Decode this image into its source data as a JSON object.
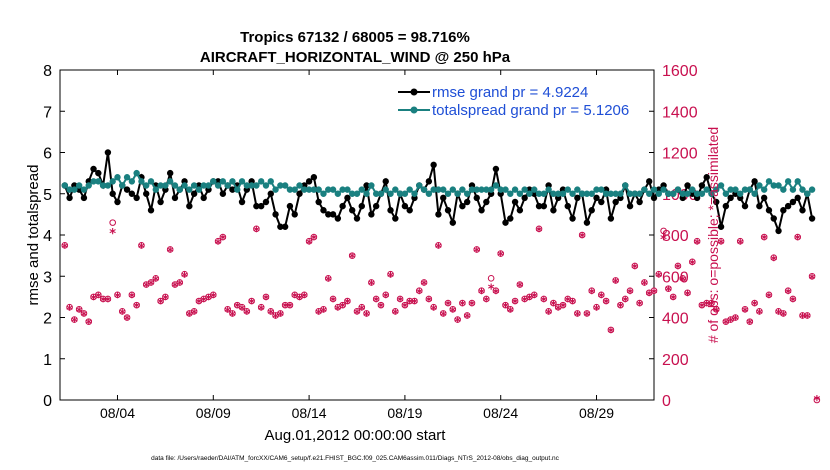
{
  "chart_data": {
    "type": "line",
    "title_line1": "Tropics 67132 / 68005 = 98.716%",
    "title_line2": "AIRCRAFT_HORIZONTAL_WIND @ 250 hPa",
    "ylabel_left": "rmse and totalspread",
    "ylabel_right": "# of obs: o=possible; *=assimilated",
    "xlabel": "Aug.01,2012 00:00:00 start",
    "footnote": "data file: /Users/raeder/DAI/ATM_forcXX/CAM6_setup/f.e21.FHIST_BGC.f09_025.CAM6assim.011/Diags_NTrS_2012-08/obs_diag_output.nc",
    "x_tick_labels": [
      "08/04",
      "08/09",
      "08/14",
      "08/19",
      "08/24",
      "08/29"
    ],
    "x_tick_days": [
      4,
      9,
      14,
      19,
      24,
      29
    ],
    "xlim": [
      1,
      32
    ],
    "ylim_left": [
      0,
      8
    ],
    "yticks_left": [
      "0",
      "1",
      "2",
      "3",
      "4",
      "5",
      "6",
      "7",
      "8"
    ],
    "ylim_right": [
      0,
      1600
    ],
    "yticks_right": [
      "0",
      "200",
      "400",
      "600",
      "800",
      "1000",
      "1200",
      "1400",
      "1600"
    ],
    "grid": false,
    "legend_position": "top-right",
    "series": [
      {
        "name": "rmse grand pr = 4.9224",
        "axis": "left",
        "color": "#000000",
        "x_start": 1.25,
        "x_step": 0.25,
        "values": [
          5.2,
          4.9,
          5.2,
          5.1,
          4.9,
          5.3,
          5.6,
          5.5,
          5.2,
          6.0,
          5.0,
          4.8,
          5.2,
          5.1,
          5.0,
          4.9,
          5.4,
          5.0,
          4.6,
          5.2,
          4.8,
          5.1,
          5.5,
          4.9,
          5.1,
          5.3,
          4.7,
          5.0,
          5.2,
          4.9,
          5.1,
          5.3,
          5.3,
          5.0,
          5.2,
          5.1,
          5.2,
          4.8,
          5.1,
          5.3,
          4.7,
          4.7,
          4.8,
          5.0,
          4.5,
          4.2,
          4.2,
          4.7,
          4.5,
          5.0,
          5.2,
          5.3,
          5.4,
          4.8,
          4.6,
          4.5,
          4.5,
          4.4,
          4.7,
          4.9,
          4.6,
          4.4,
          4.7,
          5.2,
          4.5,
          4.7,
          5.0,
          5.3,
          4.6,
          4.4,
          5.0,
          4.7,
          4.6,
          4.9,
          5.2,
          5.1,
          5.3,
          5.7,
          4.5,
          4.9,
          4.6,
          4.3,
          5.0,
          4.7,
          4.8,
          5.2,
          4.9,
          4.6,
          4.8,
          5.0,
          5.6,
          5.0,
          4.3,
          4.4,
          4.8,
          4.6,
          4.9,
          5.1,
          5.0,
          4.7,
          4.7,
          5.2,
          4.6,
          4.9,
          5.1,
          4.7,
          4.4,
          4.9,
          5.0,
          4.3,
          4.6,
          4.9,
          4.8,
          5.1,
          4.4,
          4.8,
          4.9,
          5.2,
          4.7,
          5.0,
          4.8,
          5.1,
          5.3,
          4.9,
          5.1,
          5.2,
          5.0,
          5.0,
          5.1,
          4.9,
          5.2,
          5.0,
          4.9,
          5.2,
          5.4,
          5.0,
          4.8,
          4.2,
          4.7,
          4.9,
          5.0,
          4.9,
          4.7,
          5.1,
          5.3,
          4.7,
          4.9,
          4.6,
          4.4,
          4.1,
          4.6,
          4.7,
          4.8,
          4.9,
          4.6,
          5.0,
          4.4
        ]
      },
      {
        "name": "totalspread grand pr = 5.1206",
        "axis": "left",
        "color": "#1a8080",
        "x_start": 1.25,
        "x_step": 0.25,
        "values": [
          5.2,
          5.1,
          5.1,
          5.2,
          5.1,
          5.2,
          5.3,
          5.3,
          5.2,
          5.2,
          5.3,
          5.4,
          5.2,
          5.4,
          5.3,
          5.5,
          5.3,
          5.2,
          5.3,
          5.1,
          5.2,
          5.2,
          5.3,
          5.2,
          5.1,
          5.2,
          5.1,
          5.2,
          5.1,
          5.2,
          5.2,
          5.3,
          5.2,
          5.3,
          5.2,
          5.3,
          5.1,
          5.3,
          5.2,
          5.2,
          5.2,
          5.3,
          5.2,
          5.3,
          5.1,
          5.2,
          5.2,
          5.1,
          5.1,
          5.2,
          5.1,
          5.1,
          5.1,
          5.1,
          5.0,
          5.1,
          5.1,
          5.0,
          5.1,
          5.1,
          5.0,
          5.0,
          5.1,
          5.0,
          5.2,
          5.0,
          5.0,
          5.1,
          5.0,
          5.1,
          5.0,
          5.0,
          5.1,
          5.0,
          5.2,
          5.1,
          5.0,
          5.1,
          5.1,
          5.1,
          5.0,
          5.1,
          5.0,
          5.1,
          5.0,
          5.1,
          5.1,
          5.1,
          5.1,
          5.1,
          5.2,
          5.1,
          5.1,
          5.0,
          5.1,
          5.0,
          5.1,
          5.0,
          5.1,
          5.0,
          5.0,
          5.1,
          5.0,
          5.0,
          5.0,
          5.1,
          5.0,
          5.1,
          5.0,
          5.0,
          5.0,
          5.1,
          5.1,
          5.0,
          5.0,
          5.0,
          5.0,
          5.2,
          5.0,
          5.0,
          5.0,
          5.1,
          5.0,
          5.1,
          5.0,
          5.1,
          5.0,
          5.0,
          5.1,
          5.0,
          5.0,
          5.1,
          5.0,
          5.0,
          5.1,
          5.0,
          5.1,
          5.2,
          5.0,
          5.1,
          5.1,
          5.0,
          5.1,
          5.1,
          5.0,
          5.2,
          5.1,
          5.3,
          5.2,
          5.2,
          5.1,
          5.3,
          5.1,
          5.3,
          5.1,
          5.0,
          5.1
        ]
      },
      {
        "name": "obs assimilated",
        "axis": "right",
        "color": "#c8104f",
        "marker": "*",
        "x_start": 1.25,
        "x_step": 0.25,
        "values": [
          740,
          440,
          380,
          430,
          410,
          370,
          490,
          500,
          480,
          480,
          810,
          500,
          420,
          390,
          500,
          450,
          740,
          550,
          560,
          580,
          470,
          490,
          720,
          550,
          560,
          600,
          410,
          420,
          470,
          480,
          490,
          500,
          760,
          780,
          430,
          410,
          450,
          440,
          420,
          470,
          820,
          440,
          490,
          420,
          400,
          410,
          450,
          450,
          500,
          490,
          500,
          760,
          780,
          420,
          430,
          580,
          480,
          440,
          450,
          470,
          690,
          420,
          440,
          410,
          560,
          480,
          450,
          500,
          600,
          420,
          480,
          450,
          470,
          470,
          520,
          560,
          480,
          440,
          740,
          410,
          460,
          430,
          380,
          460,
          400,
          460,
          720,
          520,
          480,
          540,
          520,
          700,
          450,
          430,
          470,
          550,
          480,
          490,
          500,
          820,
          480,
          420,
          460,
          440,
          450,
          480,
          470,
          410,
          790,
          410,
          520,
          440,
          500,
          470,
          330,
          570,
          450,
          480,
          520,
          640,
          460,
          560,
          510,
          520,
          600,
          780,
          530,
          490,
          640,
          580,
          510,
          660,
          760,
          450,
          460,
          460,
          430,
          760,
          370,
          380,
          390,
          760,
          430,
          370,
          460,
          420,
          780,
          500,
          680,
          420,
          410,
          520,
          480,
          780,
          400,
          400,
          590,
          0
        ]
      },
      {
        "name": "obs possible",
        "axis": "right",
        "color": "#c8104f",
        "marker": "o",
        "x_start": 1.25,
        "x_step": 0.25,
        "values": [
          750,
          450,
          390,
          440,
          420,
          380,
          500,
          510,
          490,
          490,
          860,
          510,
          430,
          400,
          510,
          460,
          750,
          560,
          570,
          590,
          480,
          500,
          730,
          560,
          570,
          610,
          420,
          430,
          480,
          490,
          500,
          510,
          770,
          790,
          440,
          420,
          460,
          450,
          430,
          480,
          830,
          450,
          500,
          430,
          410,
          420,
          460,
          460,
          510,
          500,
          510,
          770,
          790,
          430,
          440,
          590,
          490,
          450,
          460,
          480,
          700,
          430,
          450,
          420,
          570,
          490,
          460,
          510,
          610,
          430,
          490,
          460,
          480,
          480,
          530,
          570,
          490,
          450,
          750,
          420,
          470,
          440,
          390,
          470,
          410,
          470,
          730,
          530,
          490,
          590,
          530,
          710,
          460,
          440,
          480,
          560,
          490,
          500,
          510,
          830,
          490,
          430,
          470,
          450,
          460,
          490,
          480,
          420,
          800,
          420,
          530,
          450,
          510,
          480,
          340,
          580,
          460,
          490,
          530,
          650,
          470,
          570,
          520,
          530,
          610,
          820,
          540,
          500,
          650,
          590,
          520,
          670,
          770,
          460,
          470,
          470,
          440,
          770,
          380,
          390,
          400,
          770,
          440,
          380,
          470,
          430,
          790,
          510,
          690,
          430,
          420,
          530,
          490,
          790,
          410,
          410,
          600,
          0
        ]
      }
    ]
  }
}
